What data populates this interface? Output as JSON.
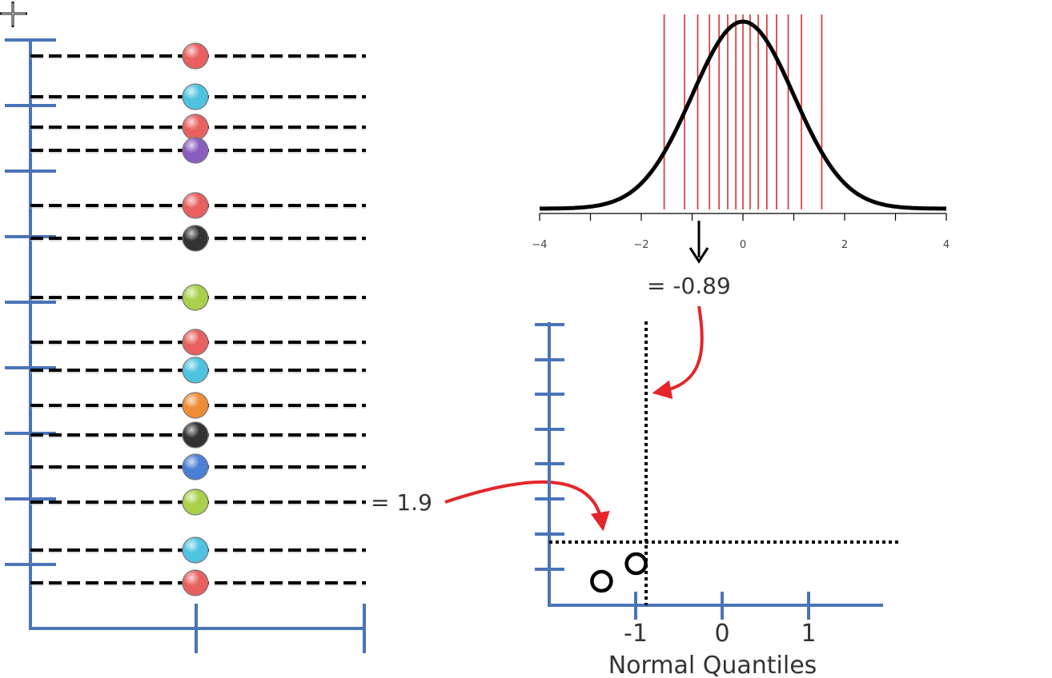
{
  "left_dotplot": {
    "points": [
      {
        "color": "#e8605f"
      },
      {
        "color": "#4ec3e0"
      },
      {
        "color": "#e8605f"
      },
      {
        "color": "#8a5cc0"
      },
      {
        "color": "#e8605f"
      },
      {
        "color": "#333333"
      },
      {
        "color": "#a8d04a"
      },
      {
        "color": "#e8605f"
      },
      {
        "color": "#4ec3e0"
      },
      {
        "color": "#f08c34"
      },
      {
        "color": "#333333"
      },
      {
        "color": "#4a7fd6"
      },
      {
        "color": "#a8d04a"
      },
      {
        "color": "#4ec3e0"
      },
      {
        "color": "#e8605f"
      }
    ]
  },
  "normal_curve": {
    "x_ticks": [
      "−4",
      "−2",
      "0",
      "2",
      "4"
    ],
    "x_range": [
      -4,
      4
    ],
    "quantile_lines": [
      -1.55,
      -1.15,
      -0.89,
      -0.66,
      -0.47,
      -0.3,
      -0.14,
      0,
      0.14,
      0.3,
      0.47,
      0.66,
      0.89,
      1.15,
      1.55
    ]
  },
  "annotations": {
    "normal_value": "= -0.89",
    "data_value": "= 1.9"
  },
  "qq_plot": {
    "x_ticks": [
      "-1",
      "0",
      "1"
    ],
    "xlabel": "Normal Quantiles",
    "points": [
      {
        "x": -1.45,
        "y": 0.2
      },
      {
        "x": -1.05,
        "y": 0.4
      }
    ]
  },
  "colors": {
    "axis_blue": "#4a74b8",
    "quantile_red": "#d8302f",
    "arrow_red": "#e4262a"
  }
}
